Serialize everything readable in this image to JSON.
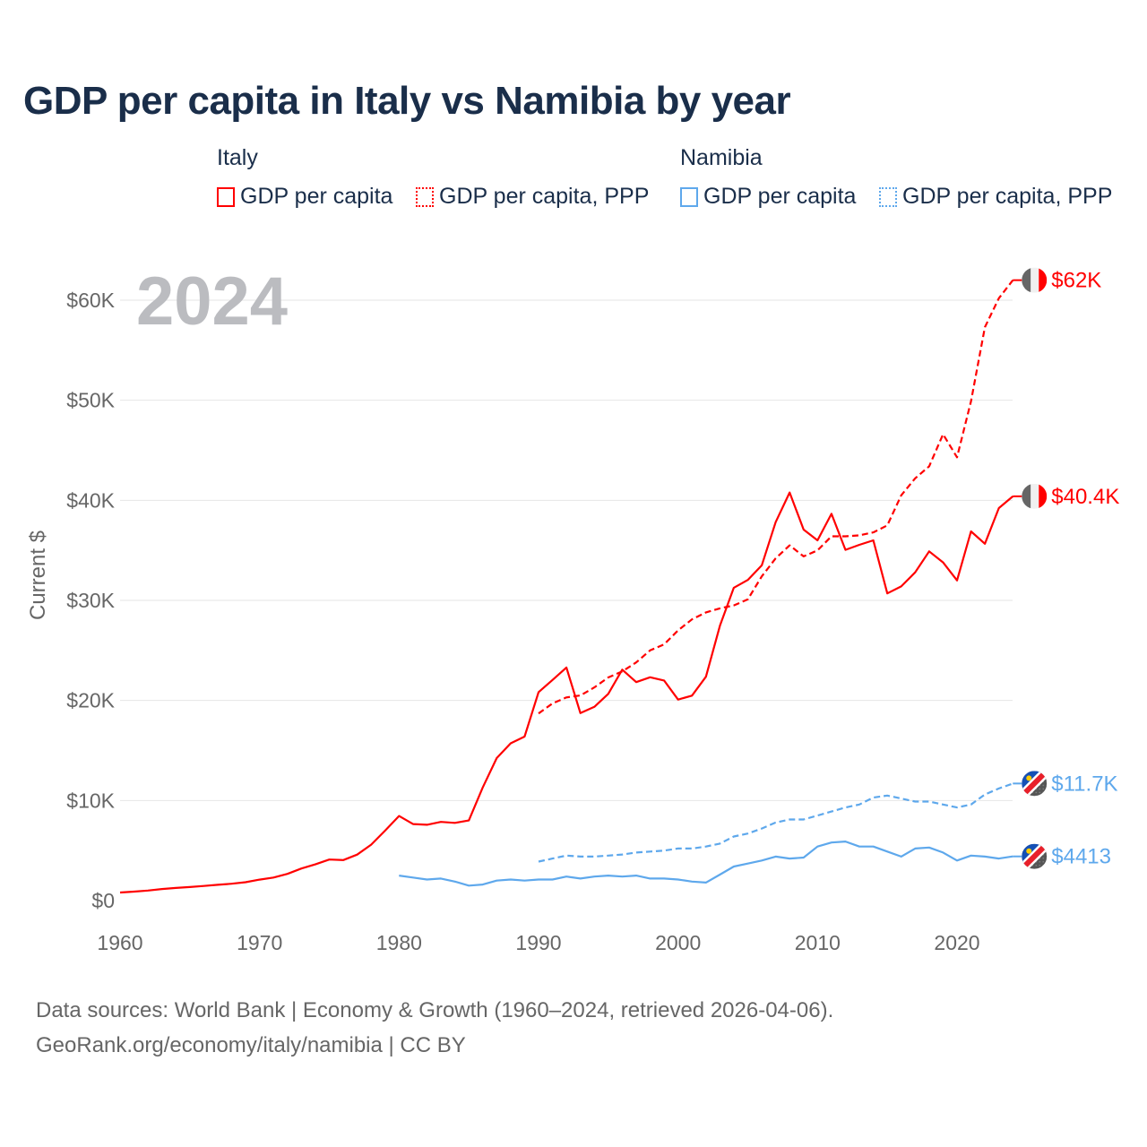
{
  "title": "GDP per capita in Italy vs Namibia by year",
  "legend": {
    "groups": [
      {
        "name": "Italy",
        "items": [
          {
            "label": "GDP per capita",
            "style": "solid"
          },
          {
            "label": "GDP per capita, PPP",
            "style": "dotted"
          }
        ],
        "color": "#ff0000"
      },
      {
        "name": "Namibia",
        "items": [
          {
            "label": "GDP per capita",
            "style": "solid"
          },
          {
            "label": "GDP per capita, PPP",
            "style": "dotted"
          }
        ],
        "color": "#5ea8ec"
      }
    ]
  },
  "year_watermark": "2024",
  "footer": {
    "line1": "Data sources: World Bank | Economy & Growth (1960–2024, retrieved 2026-04-06).",
    "line2": "GeoRank.org/economy/italy/namibia | CC BY"
  },
  "chart_data": {
    "type": "line",
    "title": "GDP per capita in Italy vs Namibia by year",
    "xlabel": "",
    "ylabel": "Current $",
    "xlim": [
      1960,
      2024
    ],
    "ylim": [
      0,
      62000
    ],
    "grid": true,
    "legend_position": "top",
    "x_ticks": [
      1960,
      1970,
      1980,
      1990,
      2000,
      2010,
      2020
    ],
    "y_ticks": [
      0,
      10000,
      20000,
      30000,
      40000,
      50000,
      60000
    ],
    "y_tick_labels": [
      "$0",
      "$10K",
      "$20K",
      "$30K",
      "$40K",
      "$50K",
      "$60K"
    ],
    "series": [
      {
        "name": "Italy GDP per capita",
        "color": "#ff0000",
        "dash": false,
        "end_label": "$40.4K",
        "flag": "italy",
        "start": 1960,
        "values": [
          804,
          892,
          1000,
          1152,
          1267,
          1356,
          1460,
          1575,
          1686,
          1832,
          2097,
          2304,
          2670,
          3204,
          3620,
          4103,
          4045,
          4598,
          5591,
          6993,
          8457,
          7646,
          7575,
          7863,
          7762,
          8003,
          11300,
          14238,
          15717,
          16385,
          20826,
          22047,
          23296,
          18733,
          19361,
          20664,
          23082,
          21830,
          22318,
          21997,
          20088,
          20482,
          22366,
          27467,
          31259,
          32043,
          33501,
          37822,
          40778,
          37079,
          36000,
          38650,
          35053,
          35549,
          36000,
          30700,
          31400,
          32800,
          34900,
          33800,
          32000,
          36900,
          35660,
          39220,
          40400
        ]
      },
      {
        "name": "Italy GDP per capita, PPP",
        "color": "#ff0000",
        "dash": true,
        "end_label": "$62K",
        "flag": "italy",
        "start": 1990,
        "values": [
          18700,
          19700,
          20300,
          20500,
          21300,
          22300,
          22900,
          23800,
          25000,
          25600,
          27000,
          28100,
          28800,
          29200,
          29500,
          30100,
          32400,
          34200,
          35500,
          34400,
          35000,
          36400,
          36400,
          36500,
          36800,
          37500,
          40500,
          42200,
          43400,
          46600,
          44300,
          49900,
          57300,
          60200,
          62000
        ]
      },
      {
        "name": "Namibia GDP per capita",
        "color": "#5ea8ec",
        "dash": false,
        "end_label": "$4413",
        "flag": "namibia",
        "start": 1980,
        "values": [
          2500,
          2300,
          2100,
          2200,
          1900,
          1500,
          1600,
          2000,
          2100,
          2000,
          2100,
          2100,
          2400,
          2200,
          2400,
          2500,
          2400,
          2500,
          2200,
          2200,
          2100,
          1900,
          1800,
          2600,
          3400,
          3700,
          4000,
          4400,
          4200,
          4300,
          5400,
          5800,
          5900,
          5400,
          5400,
          4900,
          4400,
          5200,
          5300,
          4800,
          4000,
          4500,
          4400,
          4200,
          4413
        ]
      },
      {
        "name": "Namibia GDP per capita, PPP",
        "color": "#5ea8ec",
        "dash": true,
        "end_label": "$11.7K",
        "flag": "namibia",
        "start": 1990,
        "values": [
          3900,
          4200,
          4500,
          4400,
          4400,
          4500,
          4600,
          4800,
          4900,
          5000,
          5200,
          5200,
          5400,
          5700,
          6400,
          6700,
          7200,
          7800,
          8100,
          8100,
          8500,
          8900,
          9300,
          9600,
          10300,
          10500,
          10200,
          9900,
          9900,
          9600,
          9300,
          9600,
          10600,
          11200,
          11700
        ]
      }
    ]
  }
}
